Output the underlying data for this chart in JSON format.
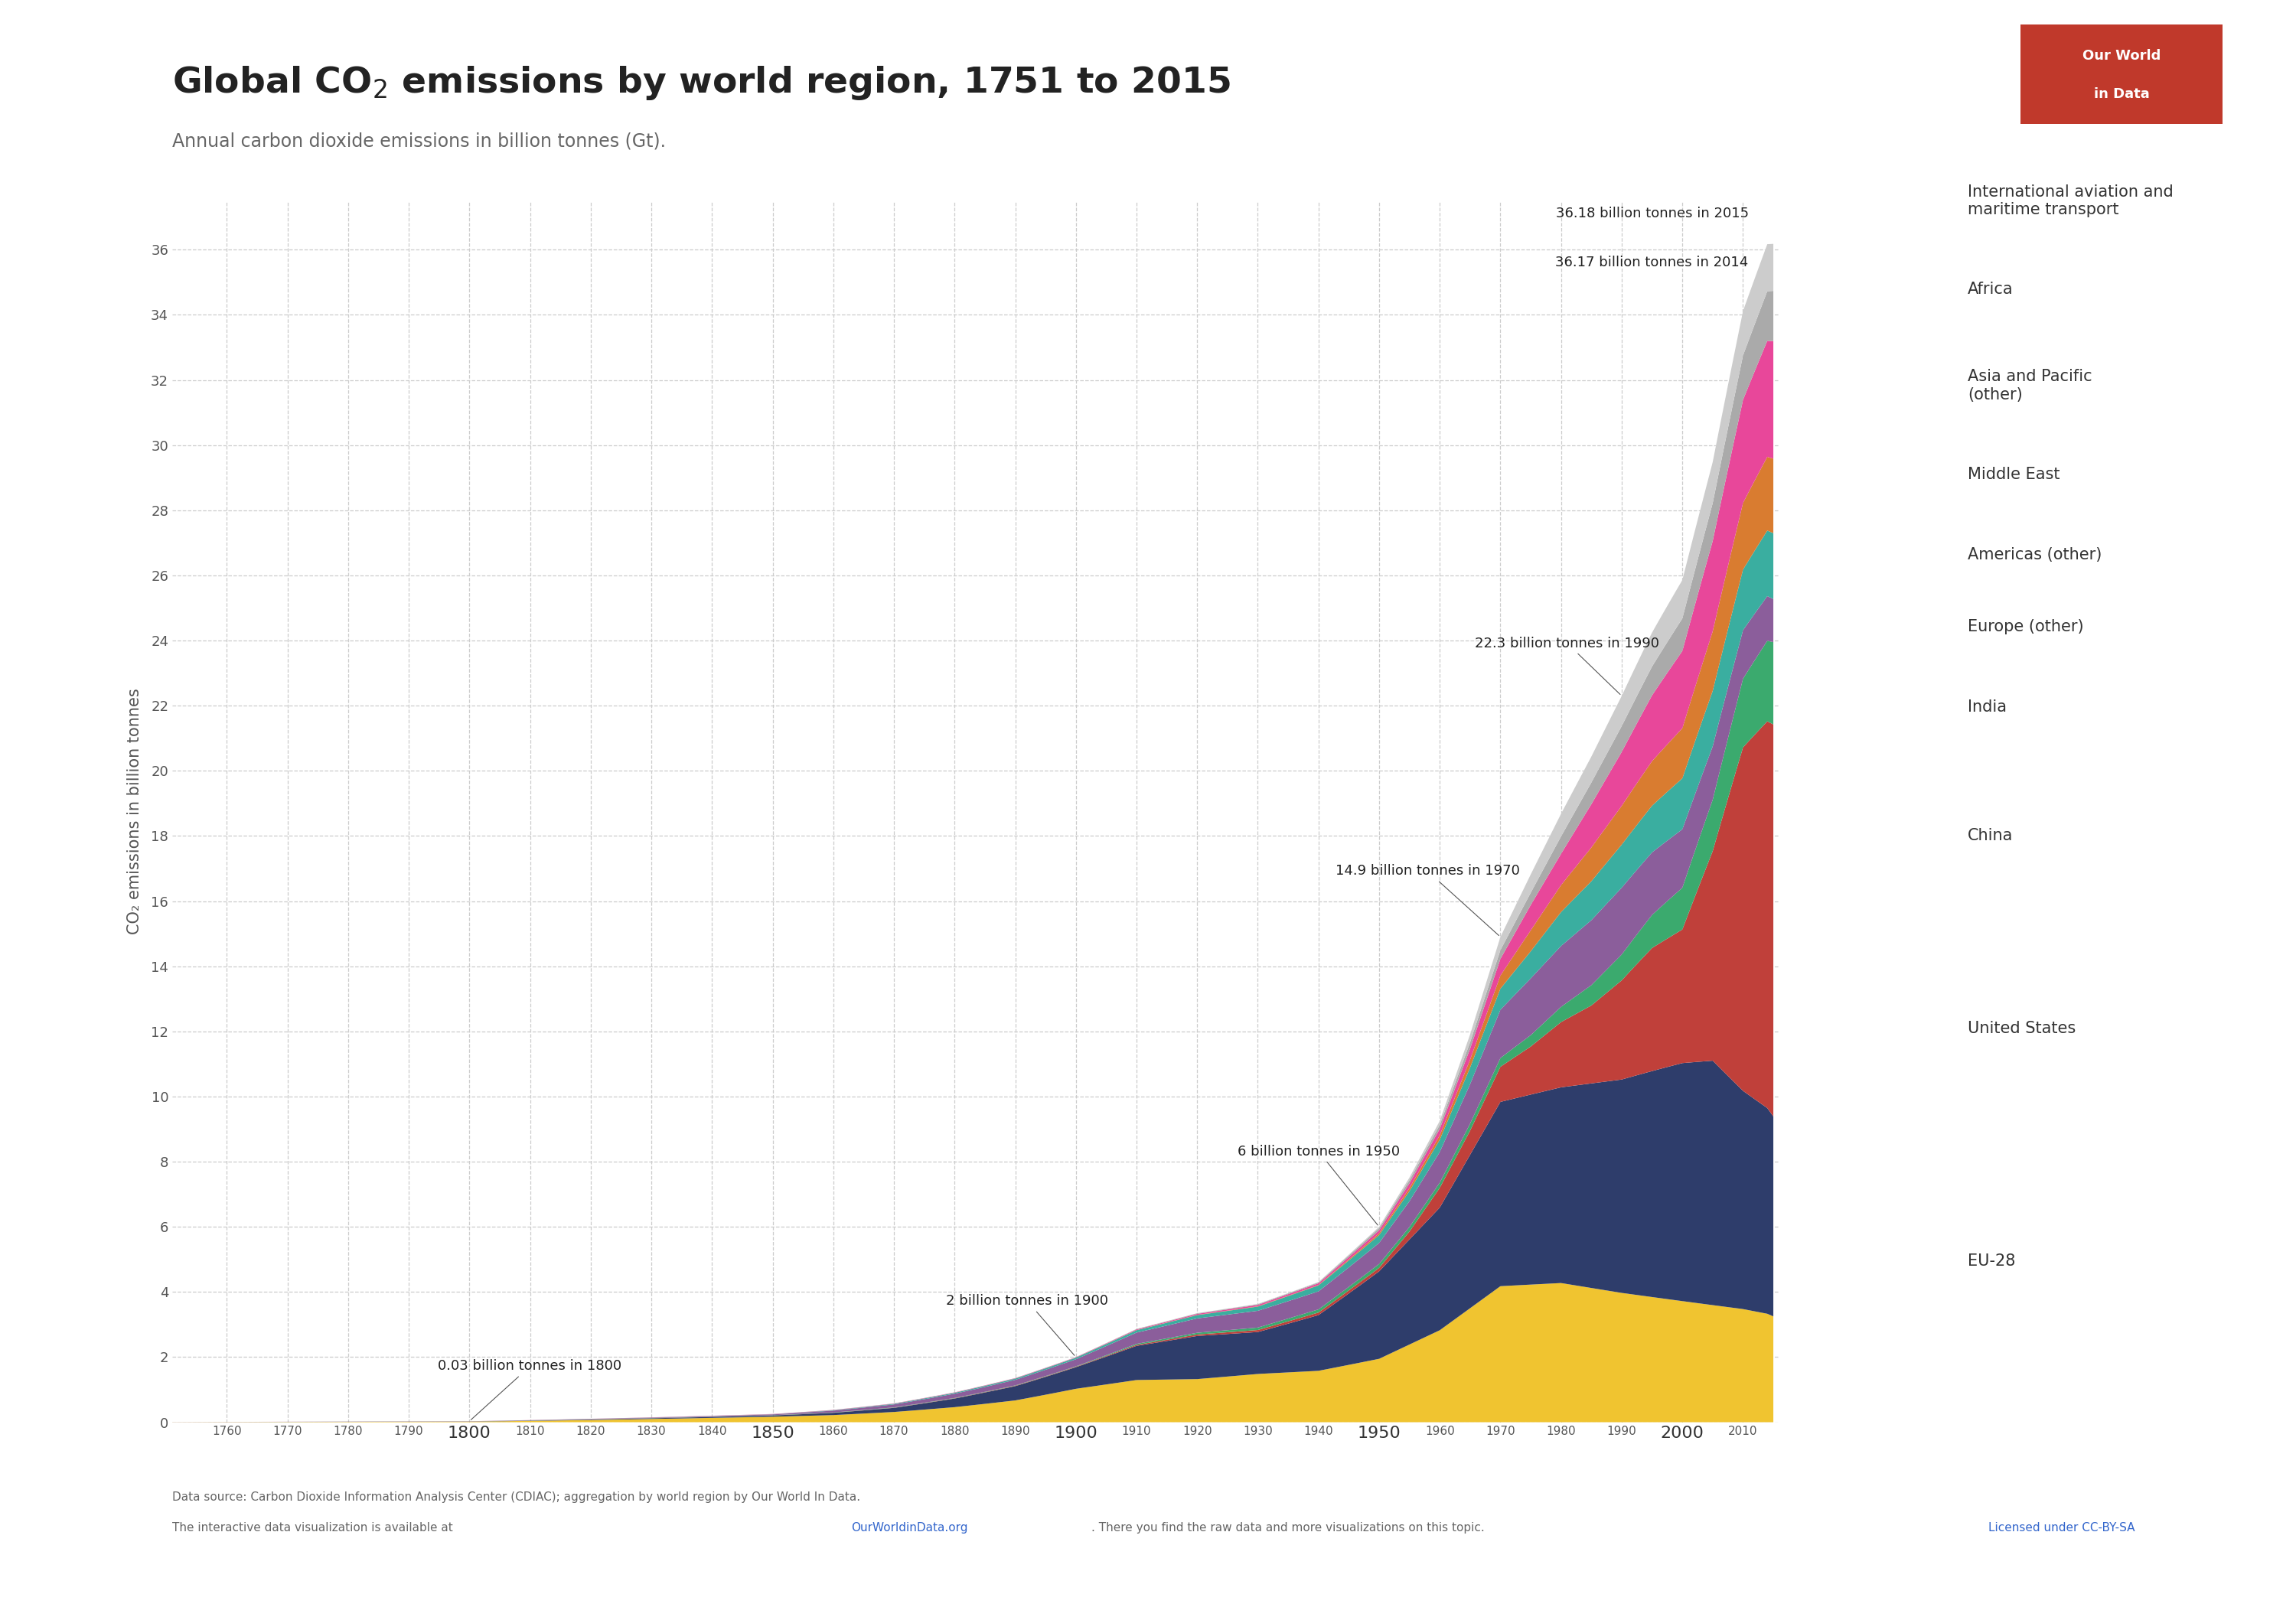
{
  "title": "Global CO₂ emissions by world region, 1751 to 2015",
  "subtitle": "Annual carbon dioxide emissions in billion tonnes (Gt).",
  "ylabel": "CO₂ emissions in billion tonnes",
  "regions": [
    "EU-28",
    "United States",
    "China",
    "India",
    "Europe (other)",
    "Americas (other)",
    "Middle East",
    "Asia and Pacific\n(other)",
    "Africa",
    "International aviation and\nmaritime transport"
  ],
  "legend_labels": [
    "EU-28",
    "United States",
    "China",
    "India",
    "Europe (other)",
    "Americas (other)",
    "Middle East",
    "Asia and Pacific\n(other)",
    "Africa",
    "International aviation and\nmaritime transport"
  ],
  "colors": [
    "#F0C430",
    "#2E3D6B",
    "#C0403A",
    "#3BAA6E",
    "#8B5E9B",
    "#3AAEA0",
    "#D97C30",
    "#E8479A",
    "#AAAAAA",
    "#CCCCCC"
  ],
  "eu28_bp_years": [
    1751,
    1800,
    1850,
    1860,
    1870,
    1880,
    1890,
    1900,
    1910,
    1920,
    1930,
    1940,
    1950,
    1960,
    1970,
    1980,
    1990,
    2000,
    2010,
    2015
  ],
  "eu28_bp_vals": [
    0.003,
    0.025,
    0.18,
    0.22,
    0.3,
    0.42,
    0.58,
    0.85,
    1.05,
    1.05,
    1.15,
    1.2,
    1.45,
    2.1,
    3.1,
    3.2,
    3.0,
    2.9,
    2.8,
    2.7
  ],
  "us_bp_years": [
    1751,
    1800,
    1850,
    1860,
    1870,
    1880,
    1890,
    1900,
    1910,
    1920,
    1930,
    1940,
    1950,
    1960,
    1970,
    1980,
    1990,
    2000,
    2005,
    2010,
    2015
  ],
  "us_bp_vals": [
    0.0,
    0.003,
    0.04,
    0.07,
    0.12,
    0.24,
    0.38,
    0.55,
    0.85,
    1.05,
    1.0,
    1.3,
    2.0,
    2.8,
    4.2,
    4.5,
    4.95,
    5.7,
    5.95,
    5.4,
    5.1
  ],
  "china_bp_years": [
    1751,
    1850,
    1900,
    1940,
    1950,
    1955,
    1960,
    1965,
    1970,
    1975,
    1980,
    1985,
    1990,
    1995,
    2000,
    2005,
    2010,
    2015
  ],
  "china_bp_vals": [
    0.001,
    0.002,
    0.012,
    0.06,
    0.08,
    0.18,
    0.45,
    0.55,
    0.8,
    1.1,
    1.5,
    1.8,
    2.3,
    2.9,
    3.2,
    5.1,
    8.5,
    10.0
  ],
  "india_bp_years": [
    1751,
    1900,
    1950,
    1960,
    1970,
    1975,
    1980,
    1985,
    1990,
    1995,
    2000,
    2005,
    2010,
    2015
  ],
  "india_bp_vals": [
    0.001,
    0.01,
    0.09,
    0.12,
    0.2,
    0.26,
    0.35,
    0.47,
    0.6,
    0.78,
    1.0,
    1.25,
    1.7,
    2.1
  ],
  "europe_other_bp_years": [
    1751,
    1800,
    1850,
    1900,
    1910,
    1920,
    1930,
    1940,
    1950,
    1960,
    1970,
    1975,
    1980,
    1985,
    1990,
    2000,
    2010,
    2015
  ],
  "europe_other_bp_vals": [
    0.001,
    0.003,
    0.025,
    0.18,
    0.28,
    0.35,
    0.4,
    0.42,
    0.48,
    0.7,
    1.1,
    1.3,
    1.4,
    1.5,
    1.55,
    1.4,
    1.2,
    1.1
  ],
  "americas_other_bp_years": [
    1751,
    1850,
    1900,
    1930,
    1950,
    1960,
    1970,
    1975,
    1980,
    1985,
    1990,
    1995,
    2000,
    2005,
    2010,
    2015
  ],
  "americas_other_bp_vals": [
    0.0,
    0.004,
    0.04,
    0.1,
    0.18,
    0.28,
    0.48,
    0.62,
    0.78,
    0.9,
    1.0,
    1.1,
    1.22,
    1.35,
    1.5,
    1.68
  ],
  "middle_east_bp_years": [
    1751,
    1900,
    1940,
    1950,
    1960,
    1965,
    1970,
    1975,
    1980,
    1985,
    1990,
    1995,
    2000,
    2005,
    2010,
    2015
  ],
  "middle_east_bp_vals": [
    0.0,
    0.001,
    0.01,
    0.04,
    0.1,
    0.18,
    0.3,
    0.48,
    0.62,
    0.78,
    0.9,
    1.05,
    1.2,
    1.45,
    1.65,
    1.9
  ],
  "asia_pacific_bp_years": [
    1751,
    1900,
    1940,
    1950,
    1960,
    1965,
    1970,
    1975,
    1980,
    1985,
    1990,
    1995,
    2000,
    2005,
    2010,
    2015
  ],
  "asia_pacific_bp_vals": [
    0.001,
    0.01,
    0.04,
    0.07,
    0.15,
    0.25,
    0.38,
    0.58,
    0.72,
    1.0,
    1.25,
    1.55,
    1.85,
    2.2,
    2.55,
    3.0
  ],
  "africa_bp_years": [
    1751,
    1900,
    1940,
    1950,
    1960,
    1970,
    1975,
    1980,
    1985,
    1990,
    1995,
    2000,
    2005,
    2010,
    2015
  ],
  "africa_bp_vals": [
    0.0,
    0.005,
    0.02,
    0.05,
    0.09,
    0.2,
    0.28,
    0.4,
    0.5,
    0.6,
    0.68,
    0.78,
    0.92,
    1.1,
    1.28
  ],
  "intl_bp_years": [
    1751,
    1900,
    1940,
    1950,
    1960,
    1965,
    1970,
    1975,
    1980,
    1985,
    1990,
    1995,
    2000,
    2005,
    2010,
    2015
  ],
  "intl_bp_vals": [
    0.0,
    0.0,
    0.01,
    0.03,
    0.09,
    0.18,
    0.3,
    0.42,
    0.52,
    0.6,
    0.7,
    0.8,
    0.92,
    1.0,
    1.1,
    1.2
  ],
  "known_totals_years": [
    1800,
    1900,
    1950,
    1970,
    1990,
    2014,
    2015
  ],
  "known_totals_vals": [
    0.03,
    2.0,
    6.0,
    14.9,
    22.3,
    36.17,
    36.18
  ],
  "yticks": [
    0,
    2,
    4,
    6,
    8,
    10,
    12,
    14,
    16,
    18,
    20,
    22,
    24,
    26,
    28,
    30,
    32,
    34,
    36
  ],
  "xticks": [
    1760,
    1770,
    1780,
    1790,
    1800,
    1810,
    1820,
    1830,
    1840,
    1850,
    1860,
    1870,
    1880,
    1890,
    1900,
    1910,
    1920,
    1930,
    1940,
    1950,
    1960,
    1970,
    1980,
    1990,
    2000,
    2010
  ],
  "xtick_large": [
    1800,
    1850,
    1900,
    1950,
    2000
  ],
  "source_line1": "Data source: Carbon Dioxide Information Analysis Center (CDIAC); aggregation by world region by Our World In Data.",
  "source_line2": "The interactive data visualization is available at OurWorldinData.org. There you find the raw data and more visualizations on this topic.",
  "source_link_text": "OurWorldinData.org",
  "license_text": "Licensed under CC-BY-SA",
  "logo_bg": "#C0392B",
  "logo_line1": "Our World",
  "logo_line2": "in Data"
}
